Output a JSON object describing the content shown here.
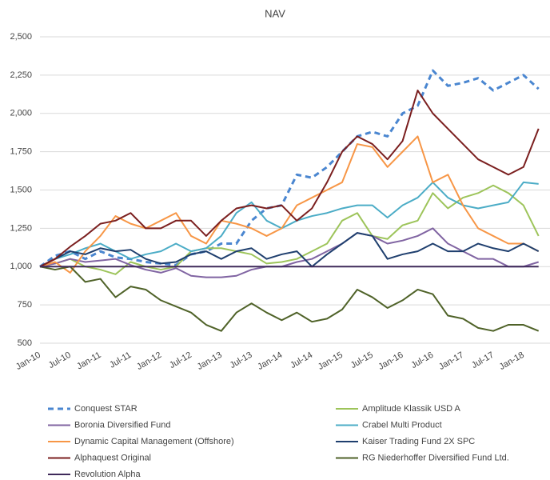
{
  "chart_data": {
    "type": "line",
    "title": "NAV",
    "categories": [
      "Jan-10",
      null,
      "Jul-10",
      null,
      "Jan-11",
      null,
      "Jul-11",
      null,
      "Jan-12",
      null,
      "Jul-12",
      null,
      "Jan-13",
      null,
      "Jul-13",
      null,
      "Jan-14",
      null,
      "Jul-14",
      null,
      "Jan-15",
      null,
      "Jul-15",
      null,
      "Jan-16",
      null,
      "Jul-16",
      null,
      "Jan-17",
      null,
      "Jul-17",
      null,
      "Jan-18",
      null
    ],
    "ylim": [
      500,
      2500
    ],
    "yticks": [
      {
        "value": 500,
        "label": "500"
      },
      {
        "value": 750,
        "label": "750"
      },
      {
        "value": 1000,
        "label": "1,000"
      },
      {
        "value": 1250,
        "label": "1,250"
      },
      {
        "value": 1500,
        "label": "1,500"
      },
      {
        "value": 1750,
        "label": "1,750"
      },
      {
        "value": 2000,
        "label": "2,000"
      },
      {
        "value": 2250,
        "label": "2,250"
      },
      {
        "value": 2500,
        "label": "2,500"
      }
    ],
    "grid": true,
    "series": [
      {
        "name": "Conquest STAR",
        "color": "#4a86d0",
        "line_style": "dashed",
        "values": [
          1000,
          1070,
          1100,
          1050,
          1100,
          1060,
          1050,
          1030,
          1020,
          1010,
          1080,
          1100,
          1150,
          1150,
          1300,
          1380,
          1400,
          1600,
          1580,
          1650,
          1750,
          1850,
          1880,
          1850,
          2000,
          2050,
          2280,
          2180,
          2200,
          2230,
          2150,
          2200,
          2250,
          2160
        ]
      },
      {
        "name": "Amplitude Klassik USD A",
        "color": "#9dc45a",
        "values": [
          1000,
          1020,
          1050,
          1000,
          980,
          950,
          1030,
          1000,
          980,
          1000,
          1100,
          1120,
          1120,
          1100,
          1080,
          1020,
          1030,
          1050,
          1100,
          1150,
          1300,
          1350,
          1200,
          1180,
          1270,
          1300,
          1480,
          1380,
          1450,
          1480,
          1530,
          1480,
          1400,
          1200
        ]
      },
      {
        "name": "Boronia Diversified Fund",
        "color": "#8064a2",
        "values": [
          1000,
          1020,
          1050,
          1030,
          1040,
          1050,
          1010,
          980,
          960,
          990,
          940,
          930,
          930,
          940,
          980,
          1000,
          1000,
          1030,
          1050,
          1100,
          1150,
          1220,
          1200,
          1150,
          1170,
          1200,
          1250,
          1150,
          1100,
          1050,
          1050,
          1000,
          1000,
          1030
        ]
      },
      {
        "name": "Crabel Multi Product",
        "color": "#4bacc6",
        "values": [
          1000,
          1050,
          1080,
          1120,
          1150,
          1100,
          1050,
          1080,
          1100,
          1150,
          1100,
          1120,
          1200,
          1350,
          1420,
          1300,
          1250,
          1300,
          1330,
          1350,
          1380,
          1400,
          1400,
          1320,
          1400,
          1450,
          1550,
          1450,
          1400,
          1380,
          1400,
          1420,
          1550,
          1540
        ]
      },
      {
        "name": "Dynamic Capital Management (Offshore)",
        "color": "#f79646",
        "values": [
          1000,
          1030,
          960,
          1100,
          1200,
          1330,
          1280,
          1250,
          1300,
          1350,
          1200,
          1150,
          1300,
          1280,
          1250,
          1200,
          1250,
          1400,
          1450,
          1500,
          1550,
          1800,
          1780,
          1650,
          1750,
          1850,
          1550,
          1600,
          1400,
          1250,
          1200,
          1150,
          1150,
          1100
        ]
      },
      {
        "name": "Kaiser Trading Fund 2X SPC",
        "color": "#1f3f6e",
        "values": [
          1000,
          1050,
          1100,
          1080,
          1120,
          1100,
          1110,
          1050,
          1020,
          1030,
          1080,
          1100,
          1050,
          1100,
          1120,
          1050,
          1080,
          1100,
          1000,
          1080,
          1150,
          1220,
          1200,
          1050,
          1080,
          1100,
          1150,
          1100,
          1100,
          1150,
          1120,
          1100,
          1150,
          1100
        ]
      },
      {
        "name": "Alphaquest Original",
        "color": "#7b1f1f",
        "values": [
          1000,
          1050,
          1130,
          1200,
          1280,
          1300,
          1350,
          1250,
          1250,
          1300,
          1300,
          1200,
          1300,
          1380,
          1400,
          1380,
          1400,
          1300,
          1380,
          1550,
          1750,
          1850,
          1800,
          1700,
          1820,
          2150,
          2000,
          1900,
          1800,
          1700,
          1650,
          1600,
          1650,
          1900
        ]
      },
      {
        "name": "RG Niederhoffer Diversified Fund Ltd.",
        "color": "#4f6228",
        "values": [
          1000,
          980,
          1000,
          900,
          920,
          800,
          870,
          850,
          780,
          740,
          700,
          620,
          580,
          700,
          760,
          700,
          650,
          700,
          640,
          660,
          720,
          850,
          800,
          730,
          780,
          850,
          820,
          680,
          660,
          600,
          580,
          620,
          620,
          580
        ]
      },
      {
        "name": "Revolution Alpha",
        "color": "#3f2a5a",
        "values": [
          1000,
          1000,
          1000,
          1000,
          1000,
          1000,
          1000,
          1000,
          1000,
          1000,
          1000,
          1000,
          1000,
          1000,
          1000,
          1000,
          1000,
          1000,
          1000,
          1000,
          1000,
          1000,
          1000,
          1000,
          1000,
          1000,
          1000,
          1000,
          1000,
          1000,
          1000,
          1000,
          1000,
          1000
        ]
      }
    ]
  }
}
